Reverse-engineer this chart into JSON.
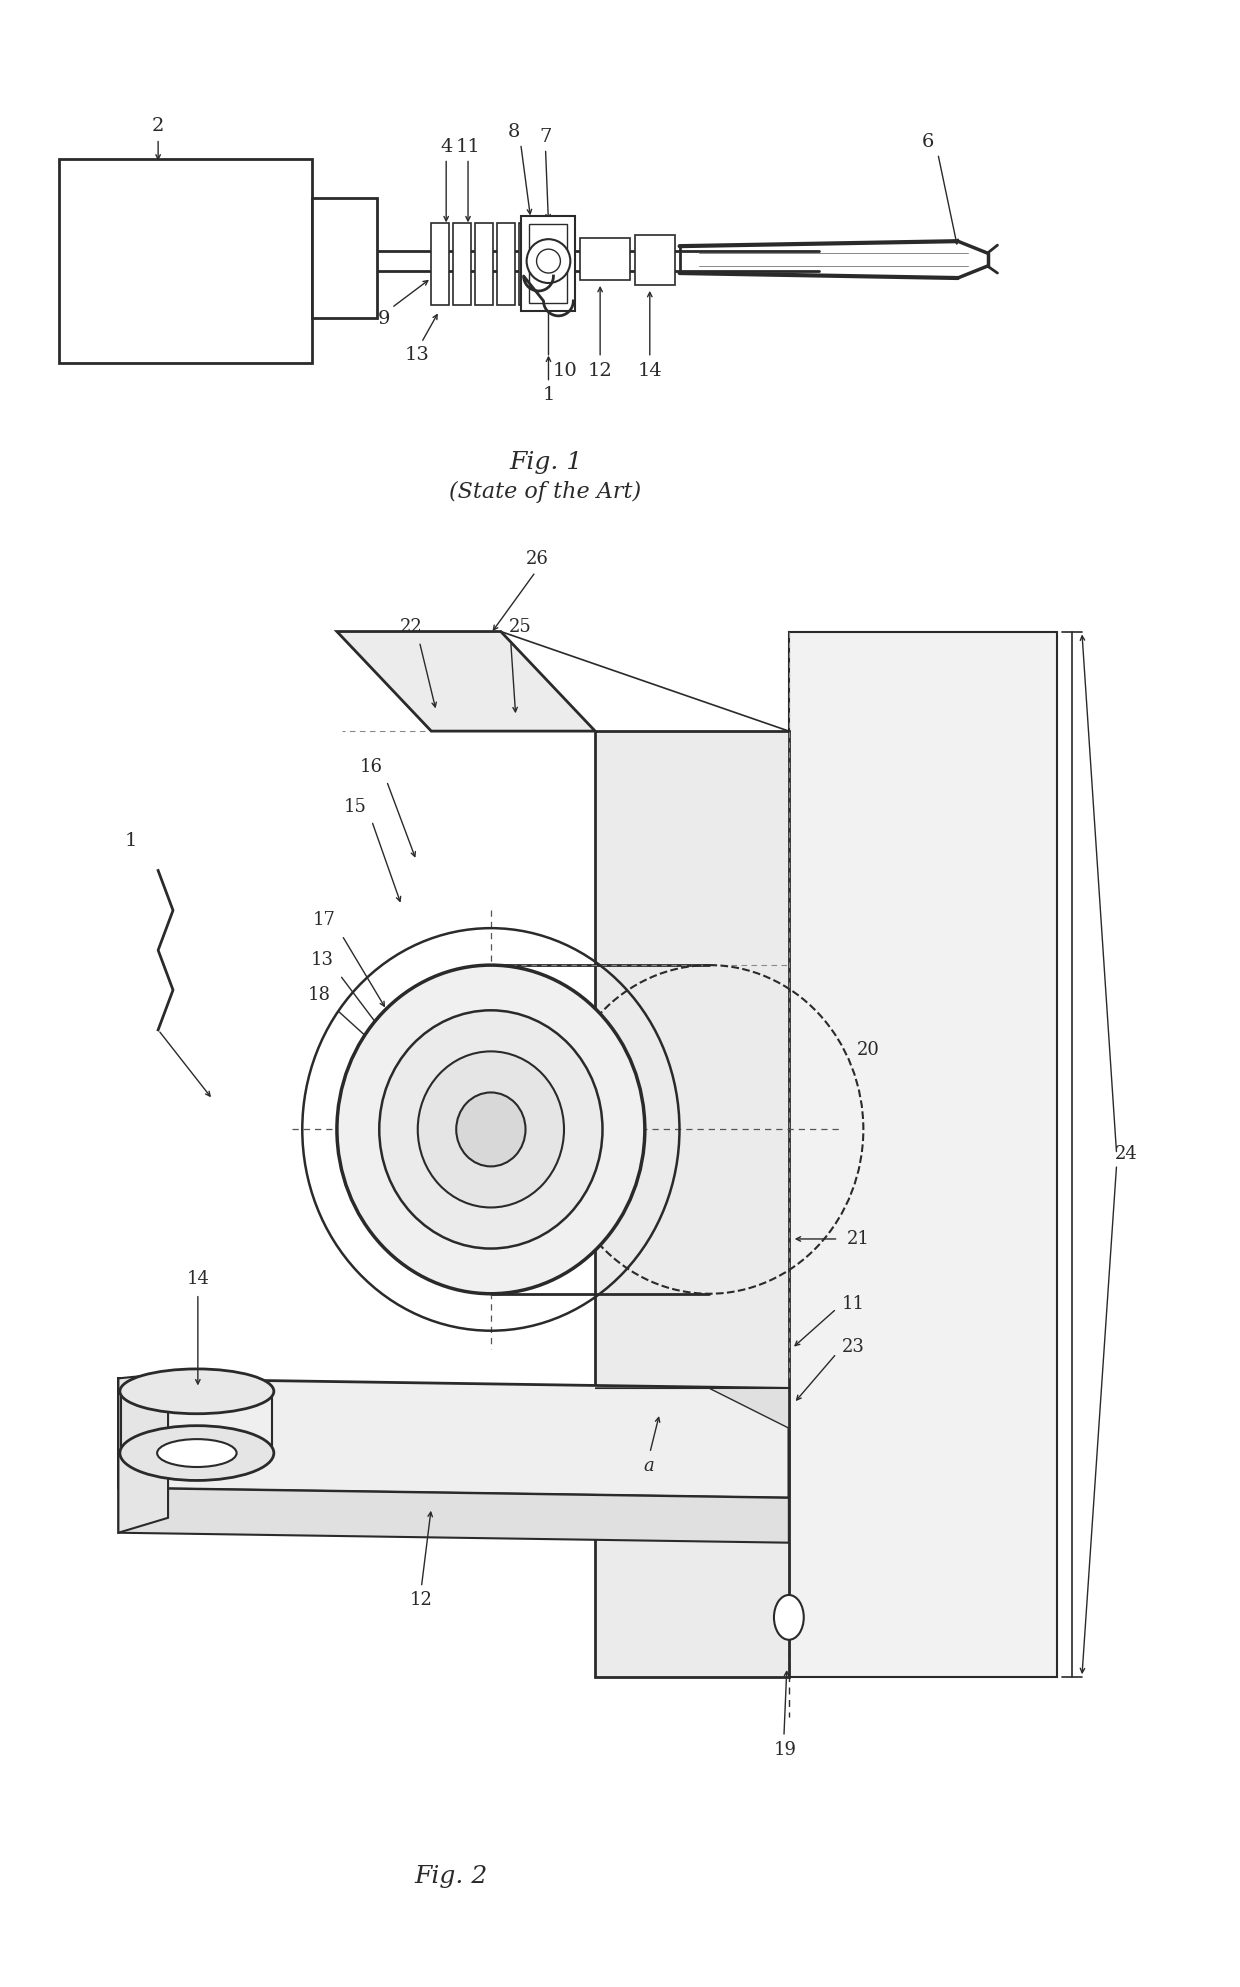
{
  "bg_color": "#ffffff",
  "line_color": "#2a2a2a",
  "fig_width": 12.4,
  "fig_height": 19.87,
  "fig1_caption": "Fig. 1",
  "fig1_subtitle": "(State of the Art)",
  "fig2_caption": "Fig. 2"
}
